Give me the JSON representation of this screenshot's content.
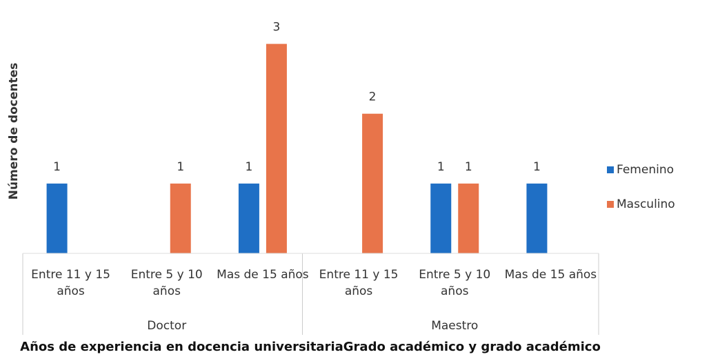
{
  "chart_data": {
    "type": "bar",
    "y_label": "Número de docentes",
    "x_label": "Años de experiencia en docencia universitariaGrado académico y grado académico",
    "groups": [
      {
        "name": "Doctor",
        "span": 3
      },
      {
        "name": "Maestro",
        "span": 3
      }
    ],
    "categories": [
      "Entre 11 y 15 años",
      "Entre 5 y 10 años",
      "Mas de 15 años",
      "Entre 11 y 15 años",
      "Entre 5 y 10 años",
      "Mas de 15 años"
    ],
    "series": [
      {
        "name": "Femenino",
        "color": "#1f6fc5",
        "values": [
          1,
          null,
          1,
          null,
          1,
          1
        ]
      },
      {
        "name": "Masculino",
        "color": "#e8744a",
        "values": [
          null,
          1,
          3,
          2,
          1,
          null
        ]
      }
    ],
    "ylim": [
      0,
      3.5
    ],
    "legend": "right"
  }
}
